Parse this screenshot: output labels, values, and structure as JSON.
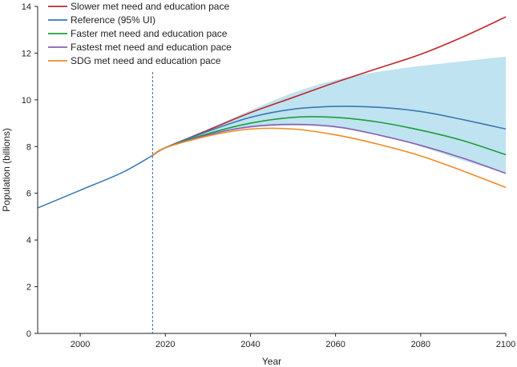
{
  "chart_data": {
    "type": "line",
    "xlabel": "Year",
    "ylabel": "Population (billions)",
    "xlim": [
      1990,
      2100
    ],
    "ylim": [
      0,
      14
    ],
    "x_ticks": [
      2000,
      2020,
      2040,
      2060,
      2080,
      2100
    ],
    "y_ticks": [
      0,
      2,
      4,
      6,
      8,
      10,
      12,
      14
    ],
    "grid": false,
    "legend_position": "top-left",
    "forecast_start_year": 2017,
    "historical": {
      "color": "#3a78b5",
      "points": [
        [
          1990,
          5.37
        ],
        [
          2000,
          6.13
        ],
        [
          2010,
          6.9
        ],
        [
          2017,
          7.62
        ]
      ]
    },
    "uncertainty_band": {
      "name": "Reference 95% UI",
      "color": "#bfe3f0",
      "x": [
        2017,
        2020,
        2030,
        2040,
        2050,
        2060,
        2070,
        2080,
        2090,
        2100
      ],
      "lower": [
        7.62,
        7.95,
        8.5,
        8.8,
        8.9,
        8.8,
        8.5,
        8.0,
        7.4,
        6.85
      ],
      "upper": [
        7.62,
        7.95,
        8.75,
        9.55,
        10.3,
        10.85,
        11.2,
        11.45,
        11.65,
        11.85
      ]
    },
    "series": [
      {
        "name": "Slower met need and education pace",
        "color": "#c0272d",
        "x": [
          2017,
          2020,
          2030,
          2040,
          2050,
          2060,
          2070,
          2080,
          2090,
          2100
        ],
        "values": [
          7.62,
          7.95,
          8.7,
          9.45,
          10.1,
          10.75,
          11.35,
          11.95,
          12.7,
          13.55
        ]
      },
      {
        "name": "Reference (95% UI)",
        "color": "#3a78b5",
        "x": [
          2017,
          2020,
          2030,
          2040,
          2050,
          2060,
          2070,
          2080,
          2090,
          2100
        ],
        "values": [
          7.62,
          7.95,
          8.65,
          9.25,
          9.6,
          9.72,
          9.68,
          9.5,
          9.15,
          8.75
        ]
      },
      {
        "name": "Faster met need and education pace",
        "color": "#1d9e3a",
        "x": [
          2017,
          2020,
          2030,
          2040,
          2050,
          2060,
          2070,
          2080,
          2090,
          2100
        ],
        "values": [
          7.62,
          7.95,
          8.55,
          9.0,
          9.25,
          9.25,
          9.05,
          8.7,
          8.25,
          7.65
        ]
      },
      {
        "name": "Fastest met need and education pace",
        "color": "#8a5fb0",
        "x": [
          2017,
          2020,
          2030,
          2040,
          2050,
          2060,
          2070,
          2080,
          2090,
          2100
        ],
        "values": [
          7.62,
          7.95,
          8.5,
          8.85,
          8.95,
          8.85,
          8.5,
          8.05,
          7.5,
          6.85
        ]
      },
      {
        "name": "SDG met need and education pace",
        "color": "#f08a24",
        "x": [
          2017,
          2020,
          2030,
          2040,
          2050,
          2060,
          2070,
          2080,
          2090,
          2100
        ],
        "values": [
          7.62,
          7.95,
          8.45,
          8.75,
          8.75,
          8.5,
          8.1,
          7.6,
          6.95,
          6.25
        ]
      }
    ]
  }
}
